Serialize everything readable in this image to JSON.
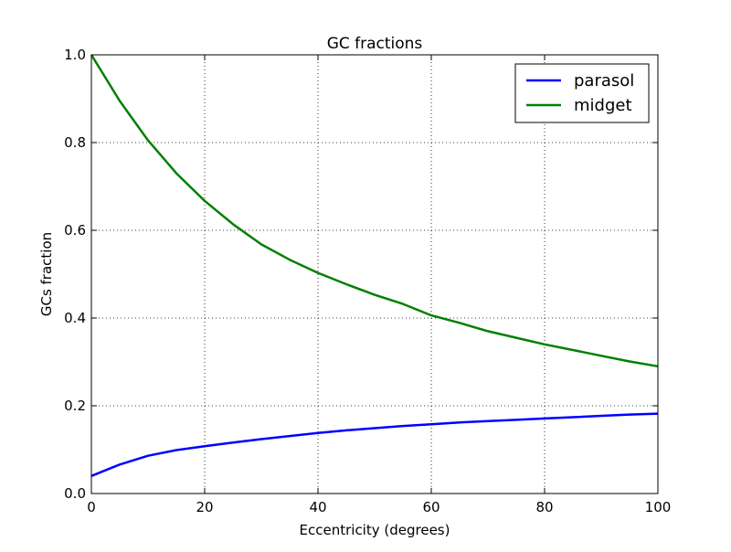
{
  "chart_data": {
    "type": "line",
    "title": "GC fractions",
    "xlabel": "Eccentricity (degrees)",
    "ylabel": "GCs fraction",
    "xlim": [
      0,
      100
    ],
    "ylim": [
      0.0,
      1.0
    ],
    "x_ticks": [
      "0",
      "20",
      "40",
      "60",
      "80",
      "100"
    ],
    "y_ticks": [
      "0.0",
      "0.2",
      "0.4",
      "0.6",
      "0.8",
      "1.0"
    ],
    "grid": true,
    "legend_position": "top-right",
    "x": [
      0,
      5,
      10,
      15,
      20,
      25,
      30,
      35,
      40,
      45,
      50,
      55,
      60,
      65,
      70,
      75,
      80,
      85,
      90,
      95,
      100
    ],
    "series": [
      {
        "name": "parasol",
        "color": "#0000ff",
        "values": [
          0.04,
          0.066,
          0.086,
          0.099,
          0.108,
          0.116,
          0.124,
          0.131,
          0.138,
          0.144,
          0.149,
          0.154,
          0.158,
          0.162,
          0.165,
          0.168,
          0.171,
          0.174,
          0.177,
          0.18,
          0.182
        ]
      },
      {
        "name": "midget",
        "color": "#008000",
        "values": [
          1.0,
          0.895,
          0.805,
          0.73,
          0.667,
          0.614,
          0.568,
          0.533,
          0.503,
          0.477,
          0.453,
          0.432,
          0.406,
          0.389,
          0.37,
          0.355,
          0.34,
          0.327,
          0.314,
          0.301,
          0.29
        ]
      }
    ]
  }
}
